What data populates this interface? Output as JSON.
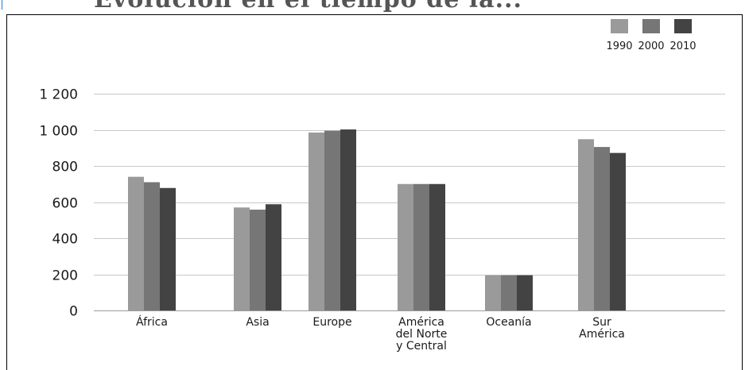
{
  "chart_data": {
    "type": "bar",
    "title": "Evolución en el tiempo de la...",
    "categories": [
      [
        "África"
      ],
      [
        "Asia"
      ],
      [
        "Europe"
      ],
      [
        "América",
        "del Norte",
        "y Central"
      ],
      [
        "Oceanía"
      ],
      [
        "Sur",
        "América"
      ]
    ],
    "series": [
      {
        "name": "1990",
        "color": "#9a9a9a",
        "values": [
          740,
          570,
          985,
          700,
          195,
          948
        ]
      },
      {
        "name": "2000",
        "color": "#767676",
        "values": [
          710,
          558,
          995,
          700,
          195,
          905
        ]
      },
      {
        "name": "2010",
        "color": "#434343",
        "values": [
          678,
          588,
          1002,
          700,
          195,
          872
        ]
      }
    ],
    "yticks": [
      "0",
      "200",
      "400",
      "600",
      "800",
      "1 000",
      "1 200"
    ],
    "ylim": [
      0,
      1200
    ],
    "grid": true,
    "legend_position": "top-right",
    "xlabel": "",
    "ylabel": ""
  }
}
